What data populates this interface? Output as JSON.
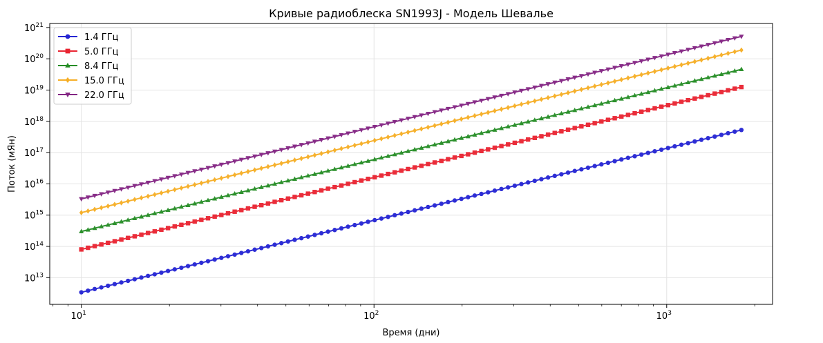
{
  "chart_data": {
    "type": "line",
    "title": "Кривые радиоблеска SN1993J - Модель Шевалье",
    "xlabel": "Время (дни)",
    "ylabel": "Поток (мЯн)",
    "xscale": "log",
    "yscale": "log",
    "xlim": [
      7.8,
      2300
    ],
    "ylim": [
      1400000000000.0,
      1.35e+21
    ],
    "x_ticks": [
      10,
      100,
      1000
    ],
    "x_tick_labels": [
      {
        "base": "10",
        "exp": "1"
      },
      {
        "base": "10",
        "exp": "2"
      },
      {
        "base": "10",
        "exp": "3"
      }
    ],
    "y_ticks": [
      10000000000000.0,
      100000000000000.0,
      1000000000000000.0,
      1e+16,
      1e+17,
      1e+18,
      1e+19,
      1e+20,
      1e+21
    ],
    "y_tick_labels": [
      {
        "base": "10",
        "exp": "13"
      },
      {
        "base": "10",
        "exp": "14"
      },
      {
        "base": "10",
        "exp": "15"
      },
      {
        "base": "10",
        "exp": "16"
      },
      {
        "base": "10",
        "exp": "17"
      },
      {
        "base": "10",
        "exp": "18"
      },
      {
        "base": "10",
        "exp": "19"
      },
      {
        "base": "10",
        "exp": "20"
      },
      {
        "base": "10",
        "exp": "21"
      }
    ],
    "grid": true,
    "legend_position": "top-left",
    "x_range_days": [
      10,
      1800
    ],
    "points_per_series": 100,
    "series": [
      {
        "name": "1.4 ГГц",
        "color": "#0000cc",
        "marker": "circle",
        "y_start": 3400000000000.0,
        "y_end": 5.3e+17
      },
      {
        "name": "5.0 ГГц",
        "color": "#e6000f",
        "marker": "square",
        "y_start": 80000000000000.0,
        "y_end": 1.25e+19
      },
      {
        "name": "8.4 ГГц",
        "color": "#007a00",
        "marker": "triangle-up",
        "y_start": 300000000000000.0,
        "y_end": 4.6e+19
      },
      {
        "name": "15.0 ГГц",
        "color": "#f5a000",
        "marker": "diamond",
        "y_start": 1200000000000000.0,
        "y_end": 1.9e+20
      },
      {
        "name": "22.0 ГГц",
        "color": "#6e006e",
        "marker": "triangle-down",
        "y_start": 3300000000000000.0,
        "y_end": 5.2e+20
      }
    ]
  }
}
